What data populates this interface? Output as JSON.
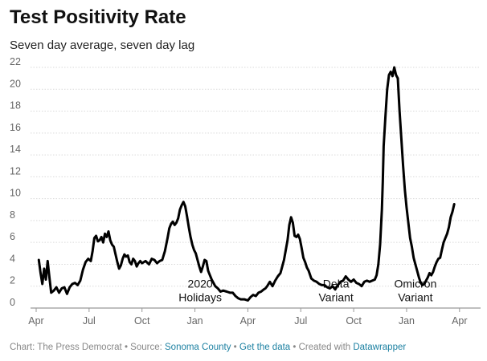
{
  "title": "Test Positivity Rate",
  "subtitle": "Seven day average, seven day lag",
  "footer": {
    "prefix": "Chart: The Press Democrat • Source: ",
    "source_link": "Sonoma County",
    "sep1": " • ",
    "data_link": "Get the data",
    "sep2": " • Created with ",
    "dw_link": "Datawrapper"
  },
  "colors": {
    "line": "#000000",
    "grid": "#d9d9d9",
    "link": "#1d81a2"
  },
  "chart_data": {
    "type": "line",
    "title": "Test Positivity Rate",
    "subtitle": "Seven day average, seven day lag",
    "xlabel": "",
    "ylabel": "",
    "ylim": [
      0,
      22
    ],
    "yticks": [
      0,
      2,
      4,
      6,
      8,
      10,
      12,
      14,
      16,
      18,
      20,
      22
    ],
    "grid": true,
    "x_ticks": [
      {
        "label": "Apr",
        "month": 0
      },
      {
        "label": "Jul",
        "month": 3
      },
      {
        "label": "Oct",
        "month": 6
      },
      {
        "label": "Jan",
        "month": 9
      },
      {
        "label": "Apr",
        "month": 12
      },
      {
        "label": "Jul",
        "month": 15
      },
      {
        "label": "Oct",
        "month": 18
      },
      {
        "label": "Jan",
        "month": 21
      },
      {
        "label": "Apr",
        "month": 24
      }
    ],
    "annotations": [
      {
        "lines": [
          "2020",
          "Holidays"
        ],
        "month": 9.3,
        "y": 1.2
      },
      {
        "lines": [
          "Delta",
          "Variant"
        ],
        "month": 17.0,
        "y": 1.2
      },
      {
        "lines": [
          "Omicron",
          "Variant"
        ],
        "month": 21.5,
        "y": 1.2
      }
    ],
    "series": [
      {
        "points": [
          [
            0.15,
            4.4
          ],
          [
            0.25,
            3.2
          ],
          [
            0.35,
            2.2
          ],
          [
            0.45,
            3.6
          ],
          [
            0.55,
            2.6
          ],
          [
            0.65,
            4.3
          ],
          [
            0.75,
            2.8
          ],
          [
            0.85,
            1.4
          ],
          [
            1.0,
            1.6
          ],
          [
            1.15,
            1.9
          ],
          [
            1.3,
            1.4
          ],
          [
            1.45,
            1.8
          ],
          [
            1.6,
            1.9
          ],
          [
            1.75,
            1.3
          ],
          [
            1.9,
            1.9
          ],
          [
            2.05,
            2.2
          ],
          [
            2.2,
            2.3
          ],
          [
            2.35,
            2.1
          ],
          [
            2.5,
            2.5
          ],
          [
            2.65,
            3.5
          ],
          [
            2.8,
            4.2
          ],
          [
            2.95,
            4.5
          ],
          [
            3.1,
            4.3
          ],
          [
            3.2,
            5.2
          ],
          [
            3.3,
            6.4
          ],
          [
            3.4,
            6.6
          ],
          [
            3.5,
            6.1
          ],
          [
            3.6,
            6.2
          ],
          [
            3.7,
            6.5
          ],
          [
            3.8,
            6.0
          ],
          [
            3.9,
            6.8
          ],
          [
            4.0,
            6.5
          ],
          [
            4.1,
            7.0
          ],
          [
            4.2,
            6.2
          ],
          [
            4.3,
            5.8
          ],
          [
            4.4,
            5.6
          ],
          [
            4.5,
            4.9
          ],
          [
            4.6,
            4.2
          ],
          [
            4.7,
            3.6
          ],
          [
            4.8,
            3.9
          ],
          [
            4.9,
            4.5
          ],
          [
            5.0,
            4.9
          ],
          [
            5.1,
            4.7
          ],
          [
            5.2,
            4.8
          ],
          [
            5.3,
            4.2
          ],
          [
            5.4,
            4.0
          ],
          [
            5.5,
            4.5
          ],
          [
            5.6,
            4.3
          ],
          [
            5.7,
            3.8
          ],
          [
            5.8,
            4.1
          ],
          [
            5.9,
            4.3
          ],
          [
            6.0,
            4.1
          ],
          [
            6.2,
            4.3
          ],
          [
            6.4,
            4.0
          ],
          [
            6.55,
            4.5
          ],
          [
            6.7,
            4.4
          ],
          [
            6.85,
            4.1
          ],
          [
            7.0,
            4.3
          ],
          [
            7.15,
            4.4
          ],
          [
            7.3,
            5.2
          ],
          [
            7.45,
            6.4
          ],
          [
            7.55,
            7.3
          ],
          [
            7.65,
            7.7
          ],
          [
            7.75,
            7.9
          ],
          [
            7.85,
            7.6
          ],
          [
            7.95,
            7.8
          ],
          [
            8.05,
            8.2
          ],
          [
            8.15,
            9.0
          ],
          [
            8.25,
            9.4
          ],
          [
            8.35,
            9.7
          ],
          [
            8.45,
            9.3
          ],
          [
            8.55,
            8.4
          ],
          [
            8.65,
            7.4
          ],
          [
            8.75,
            6.5
          ],
          [
            8.85,
            5.8
          ],
          [
            8.95,
            5.3
          ],
          [
            9.05,
            5.0
          ],
          [
            9.15,
            4.4
          ],
          [
            9.25,
            3.8
          ],
          [
            9.35,
            3.3
          ],
          [
            9.45,
            3.8
          ],
          [
            9.55,
            4.4
          ],
          [
            9.65,
            4.3
          ],
          [
            9.75,
            3.4
          ],
          [
            9.85,
            3.0
          ],
          [
            9.95,
            2.6
          ],
          [
            10.05,
            2.3
          ],
          [
            10.15,
            2.0
          ],
          [
            10.3,
            1.8
          ],
          [
            10.45,
            1.5
          ],
          [
            10.6,
            1.6
          ],
          [
            10.8,
            1.5
          ],
          [
            11.0,
            1.4
          ],
          [
            11.15,
            1.4
          ],
          [
            11.3,
            1.1
          ],
          [
            11.45,
            0.9
          ],
          [
            11.6,
            0.8
          ],
          [
            11.8,
            0.8
          ],
          [
            12.0,
            0.7
          ],
          [
            12.15,
            1.0
          ],
          [
            12.3,
            1.2
          ],
          [
            12.45,
            1.1
          ],
          [
            12.6,
            1.4
          ],
          [
            12.75,
            1.5
          ],
          [
            12.9,
            1.7
          ],
          [
            13.0,
            1.8
          ],
          [
            13.1,
            2.0
          ],
          [
            13.25,
            2.4
          ],
          [
            13.4,
            2.0
          ],
          [
            13.55,
            2.5
          ],
          [
            13.7,
            2.9
          ],
          [
            13.85,
            3.2
          ],
          [
            13.95,
            3.8
          ],
          [
            14.05,
            4.4
          ],
          [
            14.15,
            5.3
          ],
          [
            14.25,
            6.2
          ],
          [
            14.35,
            7.6
          ],
          [
            14.45,
            8.3
          ],
          [
            14.55,
            7.8
          ],
          [
            14.65,
            6.6
          ],
          [
            14.75,
            6.5
          ],
          [
            14.85,
            6.7
          ],
          [
            14.95,
            6.3
          ],
          [
            15.05,
            5.5
          ],
          [
            15.15,
            4.6
          ],
          [
            15.25,
            4.2
          ],
          [
            15.35,
            3.7
          ],
          [
            15.45,
            3.4
          ],
          [
            15.6,
            2.7
          ],
          [
            15.75,
            2.5
          ],
          [
            15.9,
            2.4
          ],
          [
            16.05,
            2.2
          ],
          [
            16.2,
            2.1
          ],
          [
            16.35,
            2.1
          ],
          [
            16.5,
            1.9
          ],
          [
            16.65,
            1.8
          ],
          [
            16.8,
            2.0
          ],
          [
            16.95,
            1.7
          ],
          [
            17.1,
            2.1
          ],
          [
            17.25,
            2.4
          ],
          [
            17.4,
            2.5
          ],
          [
            17.55,
            2.9
          ],
          [
            17.7,
            2.6
          ],
          [
            17.85,
            2.4
          ],
          [
            18.0,
            2.6
          ],
          [
            18.15,
            2.3
          ],
          [
            18.3,
            2.2
          ],
          [
            18.45,
            2.0
          ],
          [
            18.6,
            2.4
          ],
          [
            18.75,
            2.5
          ],
          [
            18.9,
            2.4
          ],
          [
            19.05,
            2.5
          ],
          [
            19.2,
            2.6
          ],
          [
            19.3,
            3.0
          ],
          [
            19.4,
            4.0
          ],
          [
            19.5,
            5.8
          ],
          [
            19.6,
            9.0
          ],
          [
            19.65,
            11.5
          ],
          [
            19.7,
            14.8
          ],
          [
            19.8,
            17.5
          ],
          [
            19.9,
            20.0
          ],
          [
            20.0,
            21.3
          ],
          [
            20.1,
            21.6
          ],
          [
            20.2,
            21.2
          ],
          [
            20.3,
            22.0
          ],
          [
            20.4,
            21.3
          ],
          [
            20.5,
            21.0
          ],
          [
            20.6,
            18.0
          ],
          [
            20.7,
            15.5
          ],
          [
            20.8,
            13.0
          ],
          [
            20.9,
            10.8
          ],
          [
            21.0,
            9.2
          ],
          [
            21.1,
            7.8
          ],
          [
            21.2,
            6.4
          ],
          [
            21.3,
            5.6
          ],
          [
            21.4,
            4.6
          ],
          [
            21.5,
            4.0
          ],
          [
            21.6,
            3.4
          ],
          [
            21.7,
            2.8
          ],
          [
            21.8,
            2.3
          ],
          [
            21.9,
            2.1
          ],
          [
            22.0,
            2.2
          ],
          [
            22.1,
            2.5
          ],
          [
            22.2,
            2.8
          ],
          [
            22.3,
            3.2
          ],
          [
            22.4,
            3.0
          ],
          [
            22.5,
            3.3
          ],
          [
            22.6,
            3.8
          ],
          [
            22.7,
            4.2
          ],
          [
            22.8,
            4.5
          ],
          [
            22.9,
            4.6
          ],
          [
            23.0,
            5.3
          ],
          [
            23.1,
            6.0
          ],
          [
            23.2,
            6.4
          ],
          [
            23.3,
            6.8
          ],
          [
            23.4,
            7.4
          ],
          [
            23.5,
            8.3
          ],
          [
            23.6,
            8.8
          ],
          [
            23.7,
            9.5
          ]
        ]
      }
    ]
  }
}
